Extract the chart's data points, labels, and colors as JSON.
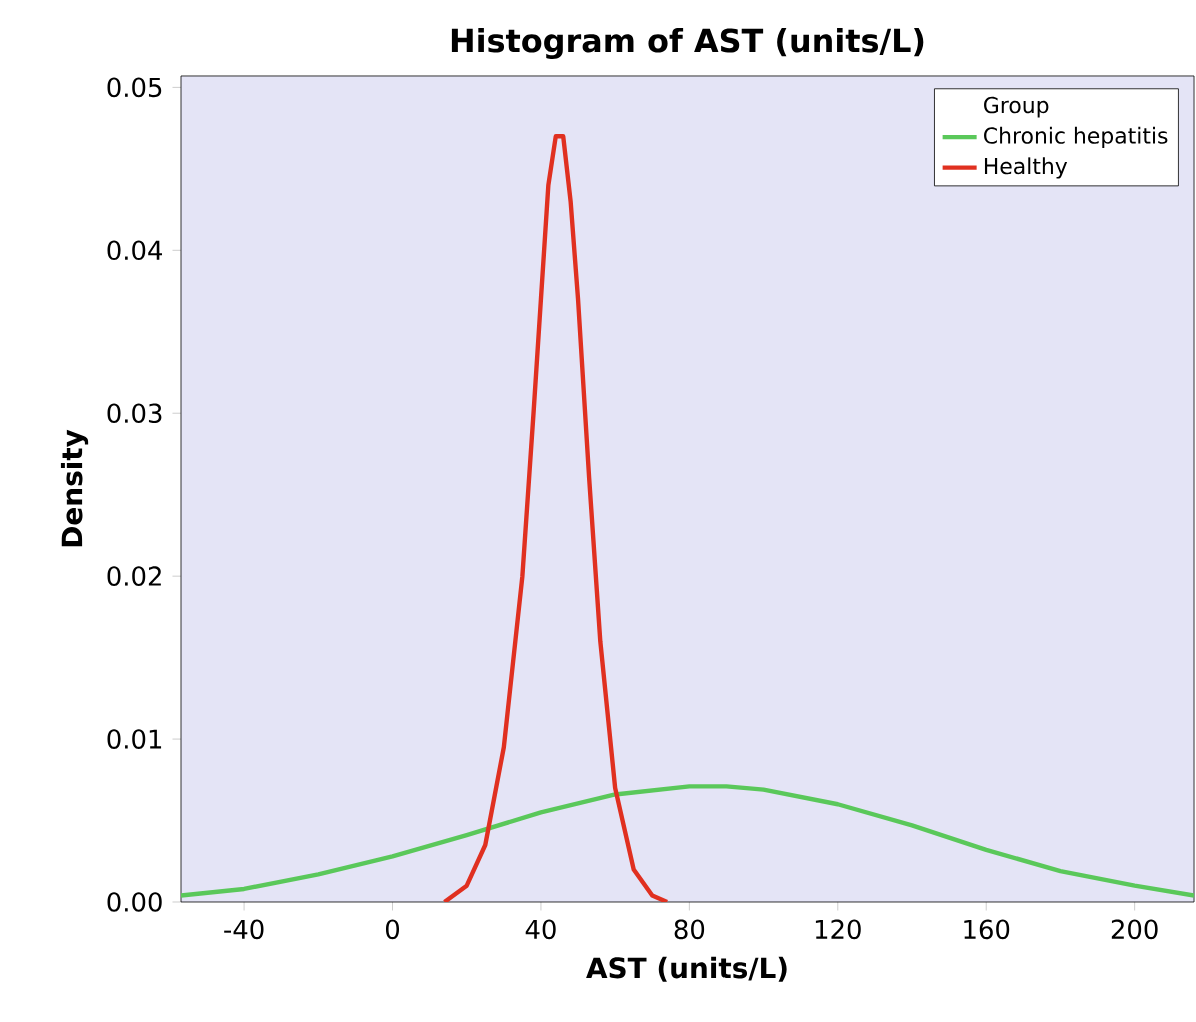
{
  "chart_data": {
    "type": "line",
    "title": "Histogram of AST (units/L)",
    "xlabel": "AST (units/L)",
    "ylabel": "Density",
    "legend_title": "Group",
    "xlim": [
      -57,
      216
    ],
    "ylim": [
      0,
      0.0507
    ],
    "xticks": [
      -40,
      0,
      40,
      80,
      120,
      160,
      200
    ],
    "yticks": [
      {
        "value": 0,
        "label": "0.00"
      },
      {
        "value": 0.01,
        "label": "0.01"
      },
      {
        "value": 0.02,
        "label": "0.02"
      },
      {
        "value": 0.03,
        "label": "0.03"
      },
      {
        "value": 0.04,
        "label": "0.04"
      },
      {
        "value": 0.05,
        "label": "0.05"
      }
    ],
    "legend": "top right",
    "grid": false,
    "marker": "none",
    "line_style": "solid",
    "series": [
      {
        "name": "Chronic hepatitis",
        "color": "#5ac85a",
        "x": [
          -57,
          -40,
          -20,
          0,
          20,
          40,
          60,
          80,
          90,
          100,
          120,
          140,
          160,
          180,
          200,
          216
        ],
        "values": [
          0.0004,
          0.0008,
          0.0017,
          0.0028,
          0.0041,
          0.0055,
          0.0066,
          0.0071,
          0.0071,
          0.0069,
          0.006,
          0.0047,
          0.0032,
          0.0019,
          0.001,
          0.0004
        ]
      },
      {
        "name": "Healthy",
        "color": "#e03020",
        "x": [
          14,
          20,
          25,
          30,
          35,
          38,
          40,
          42,
          44,
          46,
          48,
          50,
          53,
          56,
          60,
          65,
          70,
          74
        ],
        "values": [
          0,
          0.001,
          0.0035,
          0.0095,
          0.02,
          0.03,
          0.037,
          0.044,
          0.047,
          0.047,
          0.043,
          0.037,
          0.026,
          0.016,
          0.007,
          0.002,
          0.0004,
          0
        ]
      }
    ]
  }
}
